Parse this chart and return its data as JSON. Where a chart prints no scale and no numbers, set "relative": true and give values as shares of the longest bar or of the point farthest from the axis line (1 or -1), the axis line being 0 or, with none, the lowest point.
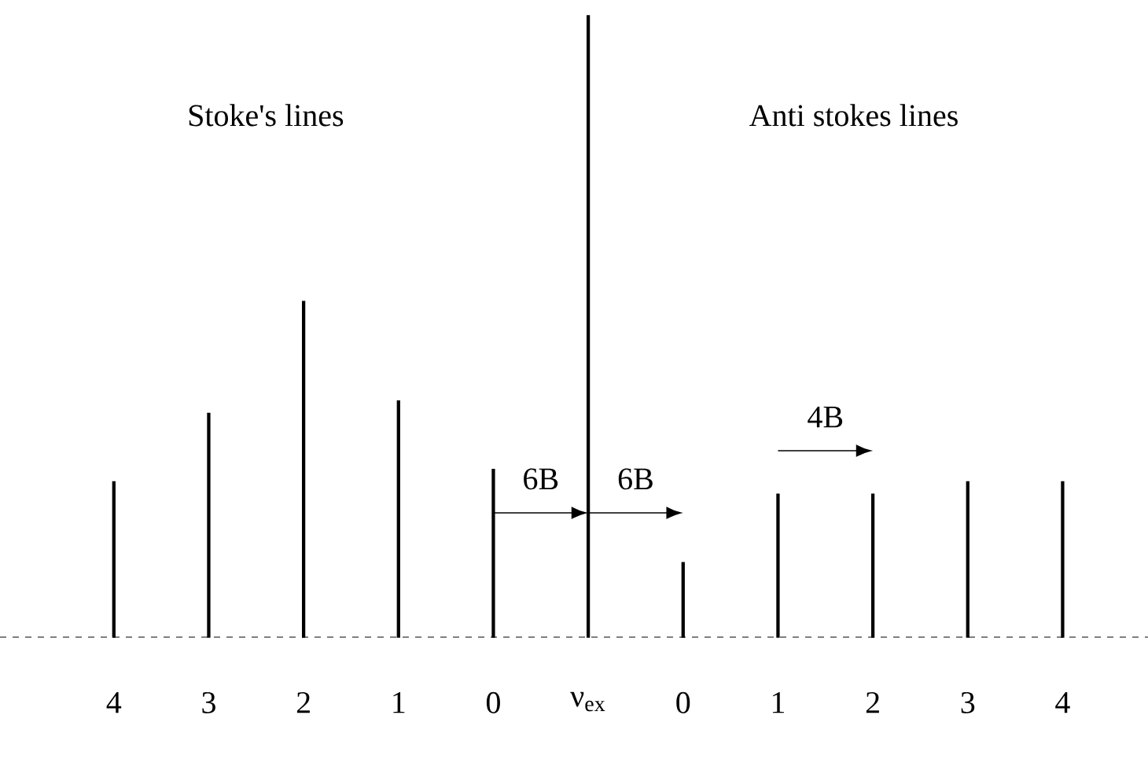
{
  "chart_data": {
    "type": "bar",
    "relative": true,
    "color": "#000000",
    "categories": [
      "4",
      "3",
      "2",
      "1",
      "0",
      "ν$_{ex}$",
      "0",
      "1",
      "2",
      "3",
      "4"
    ],
    "values": [
      0.25,
      0.36,
      0.54,
      0.38,
      0.27,
      1,
      0.12,
      0.23,
      0.23,
      0.25,
      0.25
    ],
    "annotations": [
      "Stoke's lines",
      "Anti stokes lines",
      "6B",
      "6B",
      "4B"
    ]
  }
}
